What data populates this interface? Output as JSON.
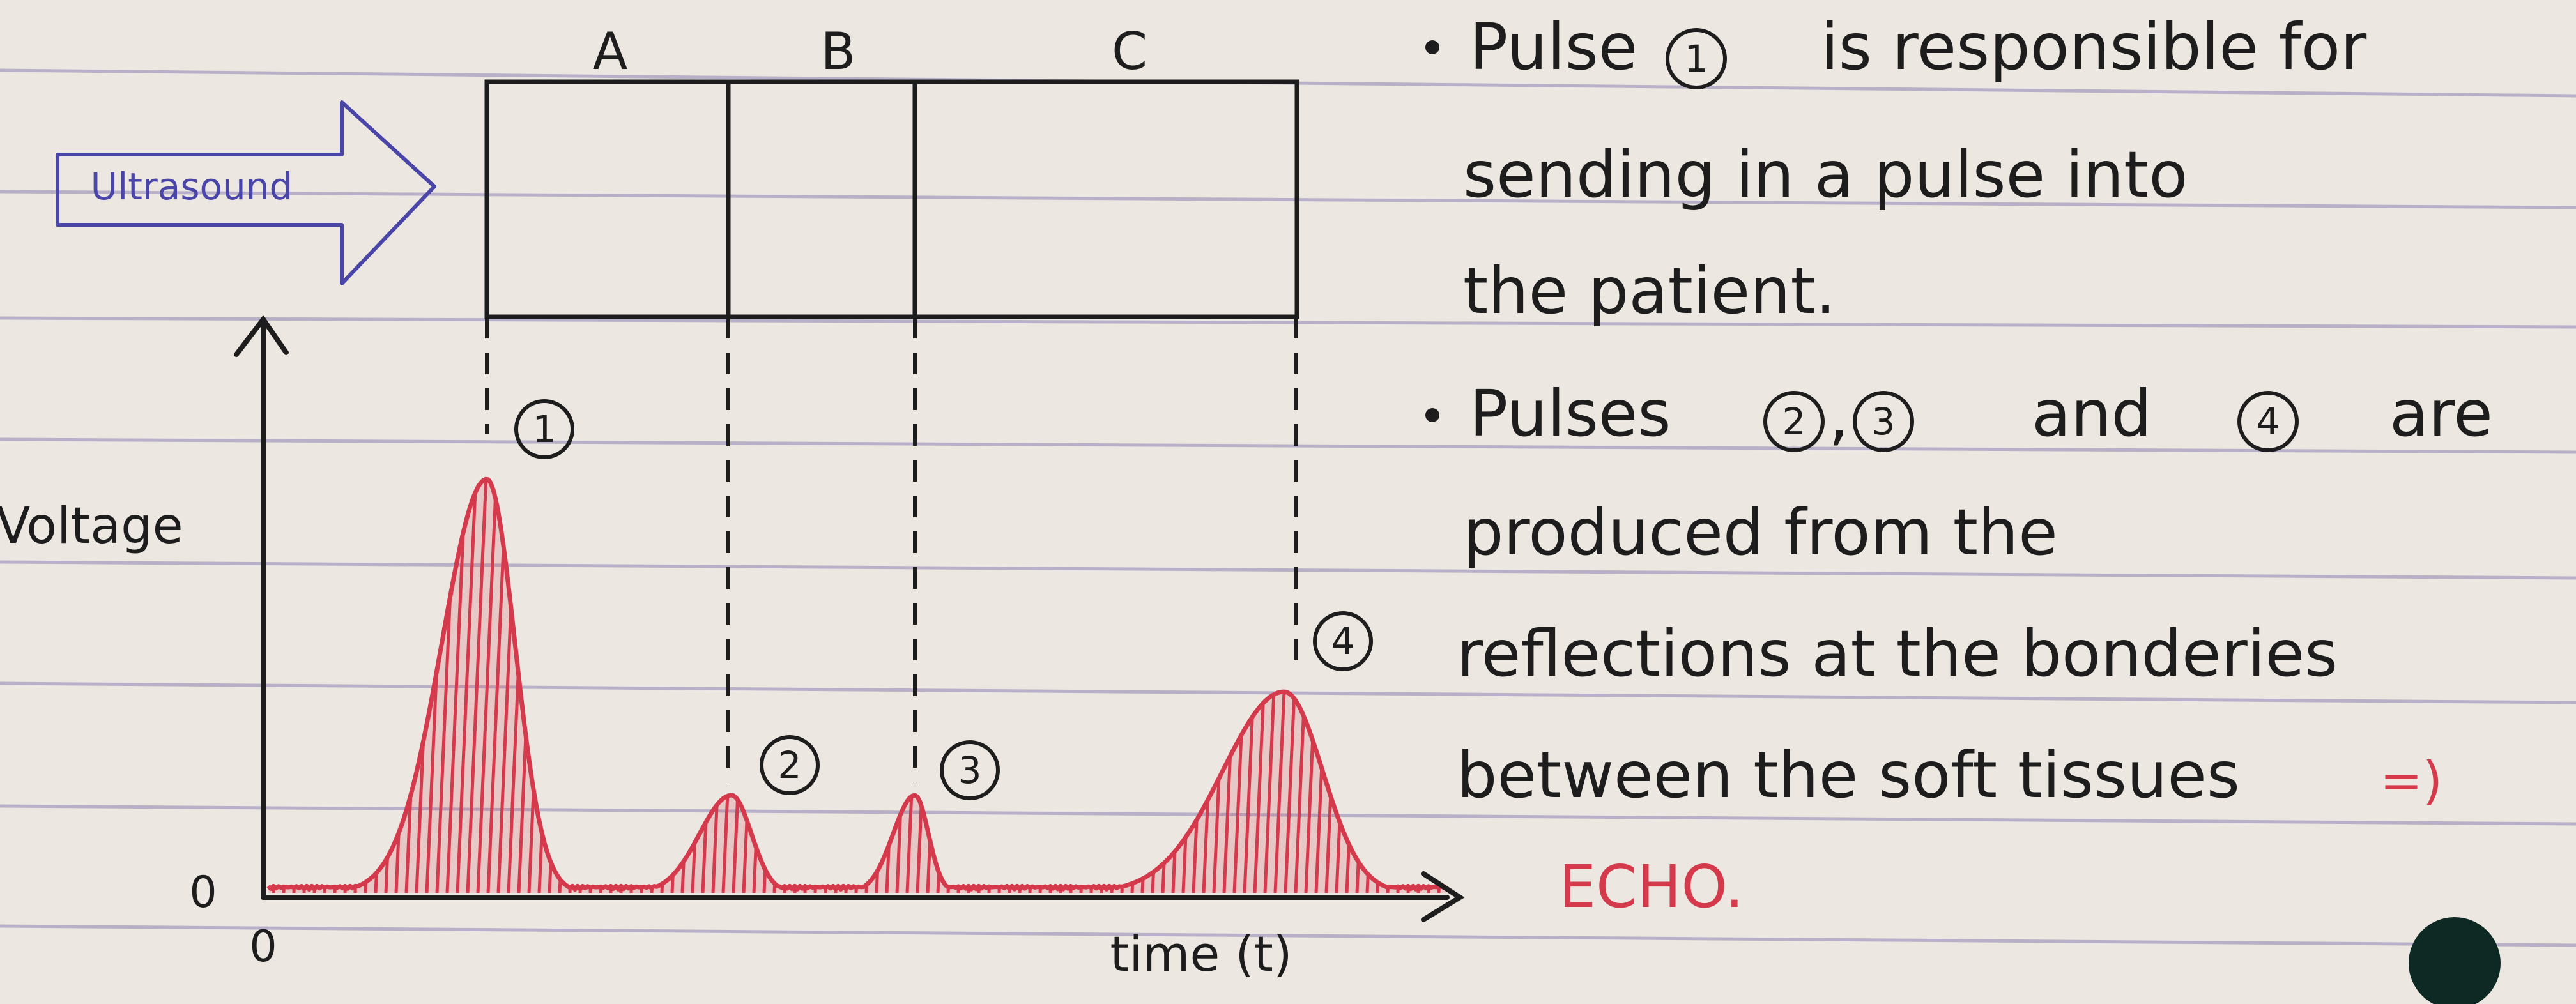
{
  "colors": {
    "paper": "#ece8e1",
    "rule_line": "#b7b0c8",
    "ink": "#1d1d1d",
    "arrow_ink": "#4a46a8",
    "signal": "#d43a4c"
  },
  "diagram": {
    "arrow_label": "Ultrasound",
    "regions": [
      "A",
      "B",
      "C"
    ],
    "axis": {
      "y_label": "Voltage",
      "x_label": "time (t)",
      "y_zero": "0",
      "x_zero": "0"
    },
    "pulses": [
      {
        "label": "1",
        "height": 0.72
      },
      {
        "label": "2",
        "height": 0.17
      },
      {
        "label": "3",
        "height": 0.17
      },
      {
        "label": "4",
        "height": 0.35
      }
    ]
  },
  "notes": {
    "bullet1": {
      "line1_pre": "Pulse",
      "line1_num": "1",
      "line1_post": "is responsible for",
      "line2": "sending in a pulse into",
      "line3": "the patient."
    },
    "bullet2": {
      "line1_pre": "Pulses",
      "num_a": "2",
      "comma": ",",
      "num_b": "3",
      "and": "and",
      "num_c": "4",
      "line1_post": "are",
      "line2": "produced from the",
      "line3": "reflections at the bonderies",
      "line4": "between the soft tissues",
      "implies": "=)",
      "echo": "ECHO."
    }
  }
}
